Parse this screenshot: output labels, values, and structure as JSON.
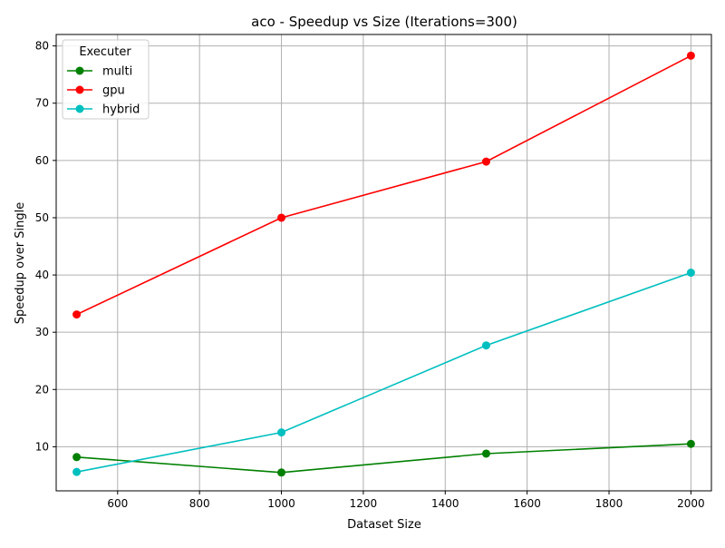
{
  "chart_data": {
    "type": "line",
    "title": "aco - Speedup vs Size (Iterations=300)",
    "xlabel": "Dataset Size",
    "ylabel": "Speedup over Single",
    "xlim": [
      450,
      2050
    ],
    "ylim": [
      2.3,
      82
    ],
    "xticks": [
      600,
      800,
      1000,
      1200,
      1400,
      1600,
      1800,
      2000
    ],
    "yticks": [
      10,
      20,
      30,
      40,
      50,
      60,
      70,
      80
    ],
    "grid": true,
    "legend": {
      "title": "Executer",
      "placement": "top-left"
    },
    "x": [
      500,
      1000,
      1500,
      2000
    ],
    "series": [
      {
        "name": "multi",
        "color": "#008000",
        "values": [
          8.2,
          5.5,
          8.8,
          10.5
        ]
      },
      {
        "name": "gpu",
        "color": "#ff0000",
        "values": [
          33.1,
          50.0,
          59.8,
          78.3
        ]
      },
      {
        "name": "hybrid",
        "color": "#00bfbf",
        "values": [
          5.6,
          12.5,
          27.7,
          40.4
        ]
      }
    ]
  }
}
